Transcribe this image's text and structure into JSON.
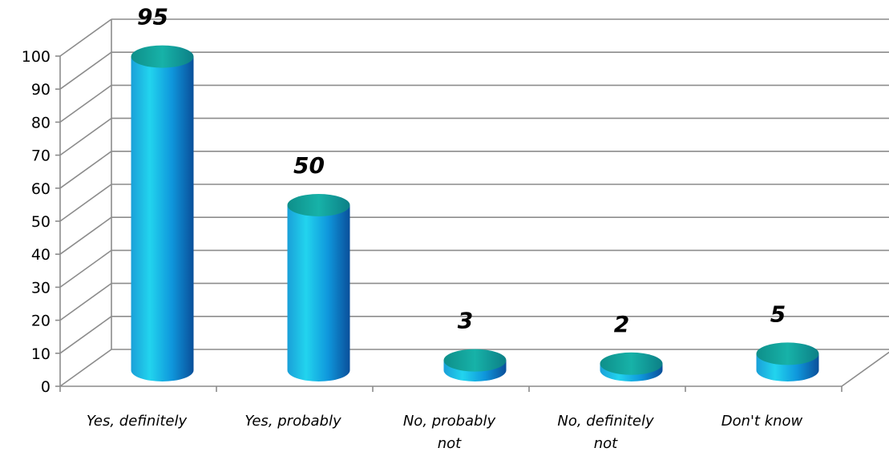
{
  "chart_data": {
    "type": "bar",
    "style": "3d-cylinder",
    "categories": [
      [
        "Yes, definitely"
      ],
      [
        "Yes, probably"
      ],
      [
        "No, probably",
        "not"
      ],
      [
        "No, definitely",
        "not"
      ],
      [
        "Don't know"
      ]
    ],
    "values": [
      95,
      50,
      3,
      2,
      5
    ],
    "data_labels": [
      "95",
      "50",
      "3",
      "2",
      "5"
    ],
    "ylim": [
      0,
      100
    ],
    "yticks": [
      "0",
      "10",
      "20",
      "30",
      "40",
      "50",
      "60",
      "70",
      "80",
      "90",
      "100"
    ],
    "grid": true,
    "colors": {
      "bar_light": "#22d4ee",
      "bar_mid": "#0fa6e0",
      "bar_dark": "#0a5aa8",
      "bar_top": "#12a6a0",
      "grid": "#8c8c8c"
    }
  }
}
